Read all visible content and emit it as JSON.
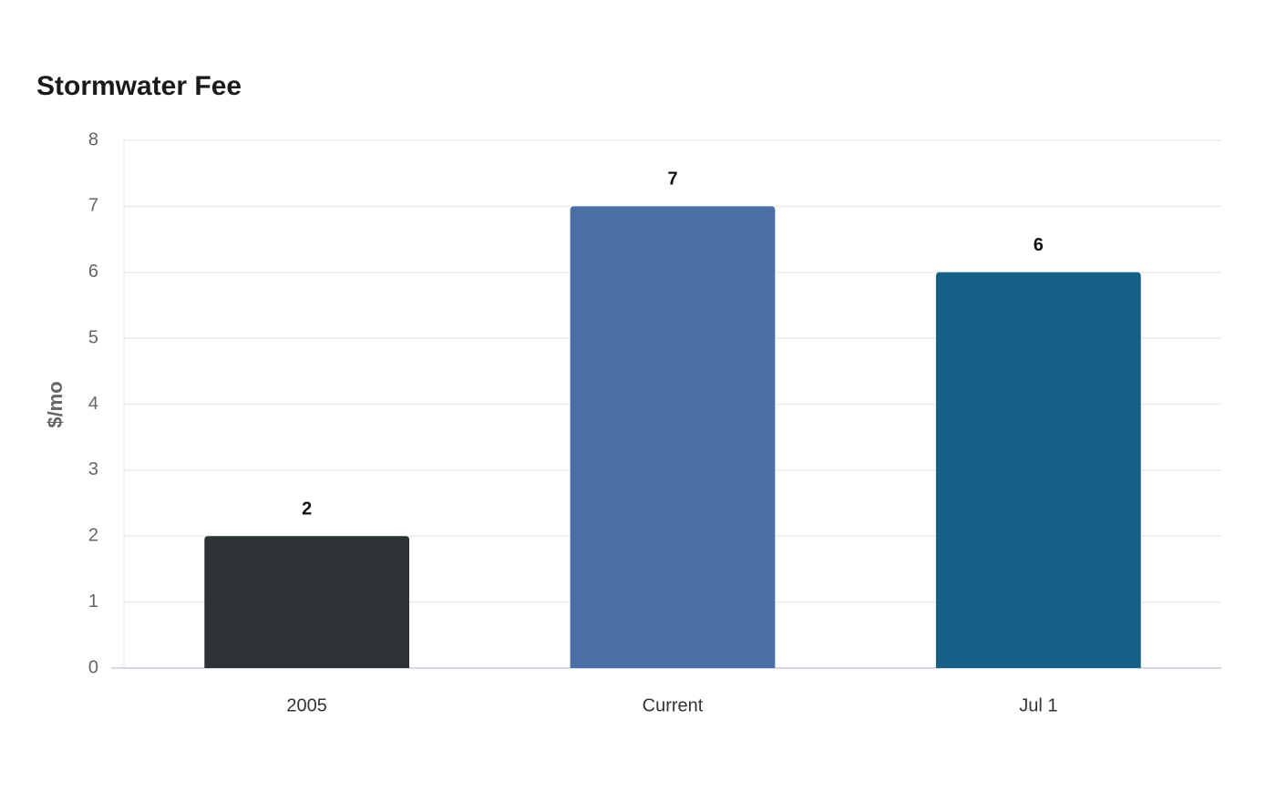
{
  "chart_data": {
    "type": "bar",
    "title": "Stormwater Fee",
    "y_label": "$/mo",
    "categories": [
      "2005",
      "Current",
      "Jul 1"
    ],
    "values": [
      2,
      7,
      6
    ],
    "colors": [
      "#2e3436",
      "#4a6fa5",
      "#166088"
    ],
    "ylim": [
      0,
      8
    ],
    "yticks": [
      0,
      1,
      2,
      3,
      4,
      5,
      6,
      7,
      8
    ],
    "grid": true
  }
}
